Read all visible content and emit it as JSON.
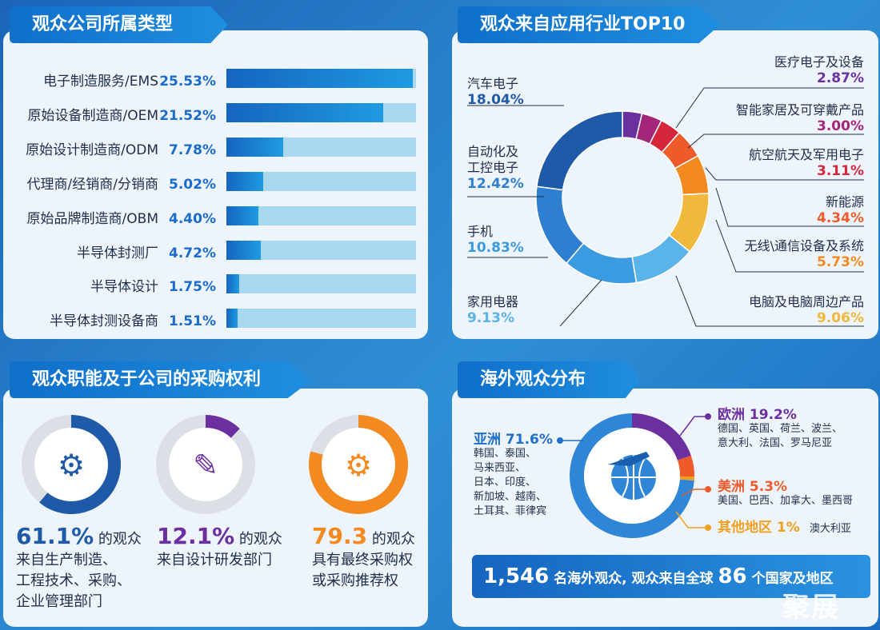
{
  "panel1": {
    "title": "观众公司所属类型",
    "rows": [
      {
        "label": "电子制造服务/EMS",
        "value": "25.53%",
        "pct": 25.53
      },
      {
        "label": "原始设备制造商/OEM",
        "value": "21.52%",
        "pct": 21.52
      },
      {
        "label": "原始设计制造商/ODM",
        "value": "7.78%",
        "pct": 7.78
      },
      {
        "label": "代理商/经销商/分销商",
        "value": "5.02%",
        "pct": 5.02
      },
      {
        "label": "原始品牌制造商/OBM",
        "value": "4.40%",
        "pct": 4.4
      },
      {
        "label": "半导体封测厂",
        "value": "4.72%",
        "pct": 4.72
      },
      {
        "label": "半导体设计",
        "value": "1.75%",
        "pct": 1.75
      },
      {
        "label": "半导体封测设备商",
        "value": "1.51%",
        "pct": 1.51
      }
    ]
  },
  "panel2": {
    "title": "观众来自应用行业TOP10",
    "labels": [
      {
        "name": "汽车电子",
        "value": "18.04%"
      },
      {
        "name": "自动化及",
        "name2": "工控电子",
        "value": "12.42%"
      },
      {
        "name": "手机",
        "value": "10.83%"
      },
      {
        "name": "家用电器",
        "value": "9.13%"
      },
      {
        "name": "医疗电子及设备",
        "value": "2.87%"
      },
      {
        "name": "智能家居及可穿戴产品",
        "value": "3.00%"
      },
      {
        "name": "航空航天及军用电子",
        "value": "3.11%"
      },
      {
        "name": "新能源",
        "value": "4.34%"
      },
      {
        "name": "无线\\通信设备及系统",
        "value": "5.73%"
      },
      {
        "name": "电脑及电脑周边产品",
        "value": "9.06%"
      }
    ]
  },
  "panel3": {
    "title": "观众职能及于公司的采购权利",
    "items": [
      {
        "big": "61.1%",
        "rest": " 的观众",
        "line2": "来自生产制造、",
        "line3": "工程技术、采购、",
        "line4": "企业管理部门"
      },
      {
        "big": "12.1%",
        "rest": " 的观众",
        "line2": "来自设计研发部门"
      },
      {
        "big": "79.3",
        "rest": " 的观众",
        "line2": "具有最终采购权",
        "line3": "或采购推荐权"
      }
    ]
  },
  "panel4": {
    "title": "海外观众分布",
    "asia": {
      "name": "亚洲 71.6%",
      "countries": [
        "韩国、泰国、",
        "马来西亚、",
        "日本、印度、",
        "新加坡、越南、",
        "土耳其、菲律宾"
      ]
    },
    "europe": {
      "name": "欧洲 19.2%",
      "countries": [
        "德国、英国、荷兰、波兰、",
        "意大利、法国、罗马尼亚"
      ]
    },
    "america": {
      "name": "美洲 5.3%",
      "countries": [
        "美国、巴西、加拿大、墨西哥"
      ]
    },
    "other": {
      "name": "其他地区 1%",
      "countries": [
        "澳大利亚"
      ]
    },
    "banner": {
      "num1": "1,546",
      "text1": " 名海外观众, 观众来自全球 ",
      "num2": "86",
      "text2": " 个国家及地区"
    }
  },
  "watermark": "聚展",
  "chart_data": [
    {
      "type": "bar",
      "title": "观众公司所属类型",
      "categories": [
        "电子制造服务/EMS",
        "原始设备制造商/OEM",
        "原始设计制造商/ODM",
        "代理商/经销商/分销商",
        "原始品牌制造商/OBM",
        "半导体封测厂",
        "半导体设计",
        "半导体封测设备商"
      ],
      "values": [
        25.53,
        21.52,
        7.78,
        5.02,
        4.4,
        4.72,
        1.75,
        1.51
      ],
      "orientation": "horizontal"
    },
    {
      "type": "pie",
      "title": "观众来自应用行业TOP10",
      "donut": true,
      "categories": [
        "汽车电子",
        "自动化及工控电子",
        "手机",
        "家用电器",
        "电脑及电脑周边产品",
        "无线\\通信设备及系统",
        "新能源",
        "航空航天及军用电子",
        "智能家居及可穿戴产品",
        "医疗电子及设备"
      ],
      "values": [
        18.04,
        12.42,
        10.83,
        9.13,
        9.06,
        5.73,
        4.34,
        3.11,
        3.0,
        2.87
      ],
      "colors": [
        "#1f5aa8",
        "#2e7fd0",
        "#3b9be0",
        "#5ab4ea",
        "#f0b83c",
        "#f38a1f",
        "#ef5a2a",
        "#d6263a",
        "#a4267a",
        "#6b2fa0"
      ]
    },
    {
      "type": "pie",
      "title": "观众职能及于公司的采购权利",
      "donut": true,
      "categories": [
        "61.1%",
        "12.1%",
        "79.3"
      ],
      "values": [
        61.1,
        12.1,
        79.3
      ],
      "colors": [
        "#1f5aa8",
        "#6b2fa0",
        "#f38a1f"
      ]
    },
    {
      "type": "pie",
      "title": "海外观众分布",
      "donut": true,
      "categories": [
        "亚洲",
        "欧洲",
        "美洲",
        "其他地区"
      ],
      "values": [
        71.6,
        19.2,
        5.3,
        1
      ],
      "colors": [
        "#2f86d6",
        "#6b2fa0",
        "#ef5a2a",
        "#f0a020"
      ]
    }
  ]
}
